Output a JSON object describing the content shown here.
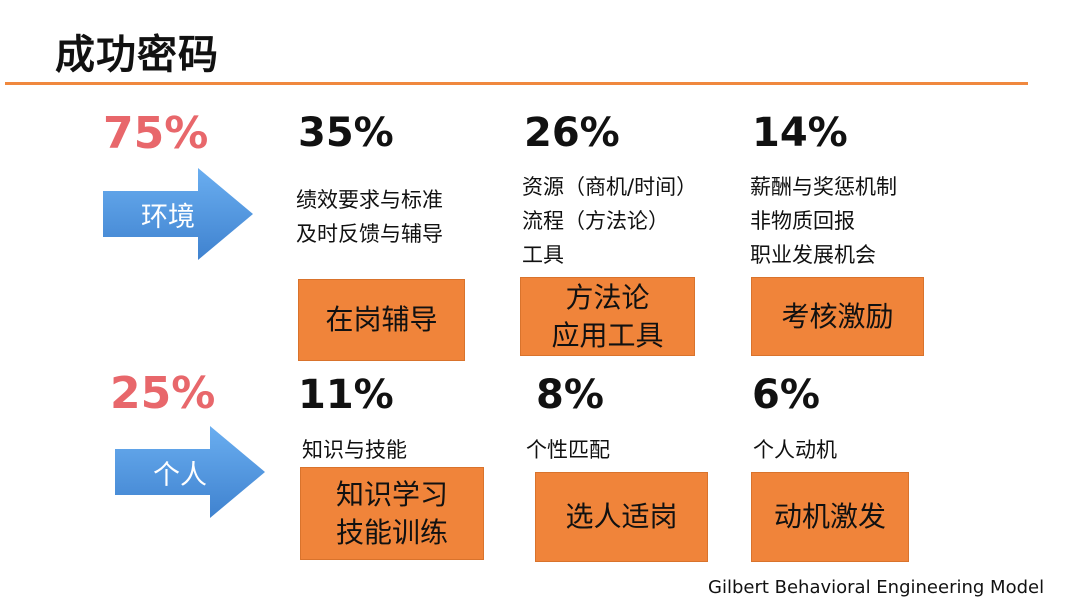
{
  "slide": {
    "title": "成功密码",
    "credit": "Gilbert Behavioral Engineering Model"
  },
  "environment": {
    "percent": "75%",
    "label": "环境",
    "columns": [
      {
        "percent": "35%",
        "lines": [
          "绩效要求与标准",
          "及时反馈与辅导"
        ],
        "box_lines": [
          "在岗辅导"
        ]
      },
      {
        "percent": "26%",
        "lines": [
          "资源（商机/时间）",
          "流程（方法论）",
          "工具"
        ],
        "box_lines": [
          "方法论",
          "应用工具"
        ]
      },
      {
        "percent": "14%",
        "lines": [
          "薪酬与奖惩机制",
          "非物质回报",
          "职业发展机会"
        ],
        "box_lines": [
          "考核激励"
        ]
      }
    ]
  },
  "individual": {
    "percent": "25%",
    "label": "个人",
    "columns": [
      {
        "percent": "11%",
        "lines": [
          "知识与技能"
        ],
        "box_lines": [
          "知识学习",
          "技能训练"
        ]
      },
      {
        "percent": "8%",
        "lines": [
          "个性匹配"
        ],
        "box_lines": [
          "选人适岗"
        ]
      },
      {
        "percent": "6%",
        "lines": [
          "个人动机"
        ],
        "box_lines": [
          "动机激发"
        ]
      }
    ]
  },
  "colors": {
    "accent_orange": "#f0843a",
    "rule_orange": "#f0883e",
    "highlight_red": "#e8676b",
    "arrow_blue": "#4a8fd8"
  }
}
